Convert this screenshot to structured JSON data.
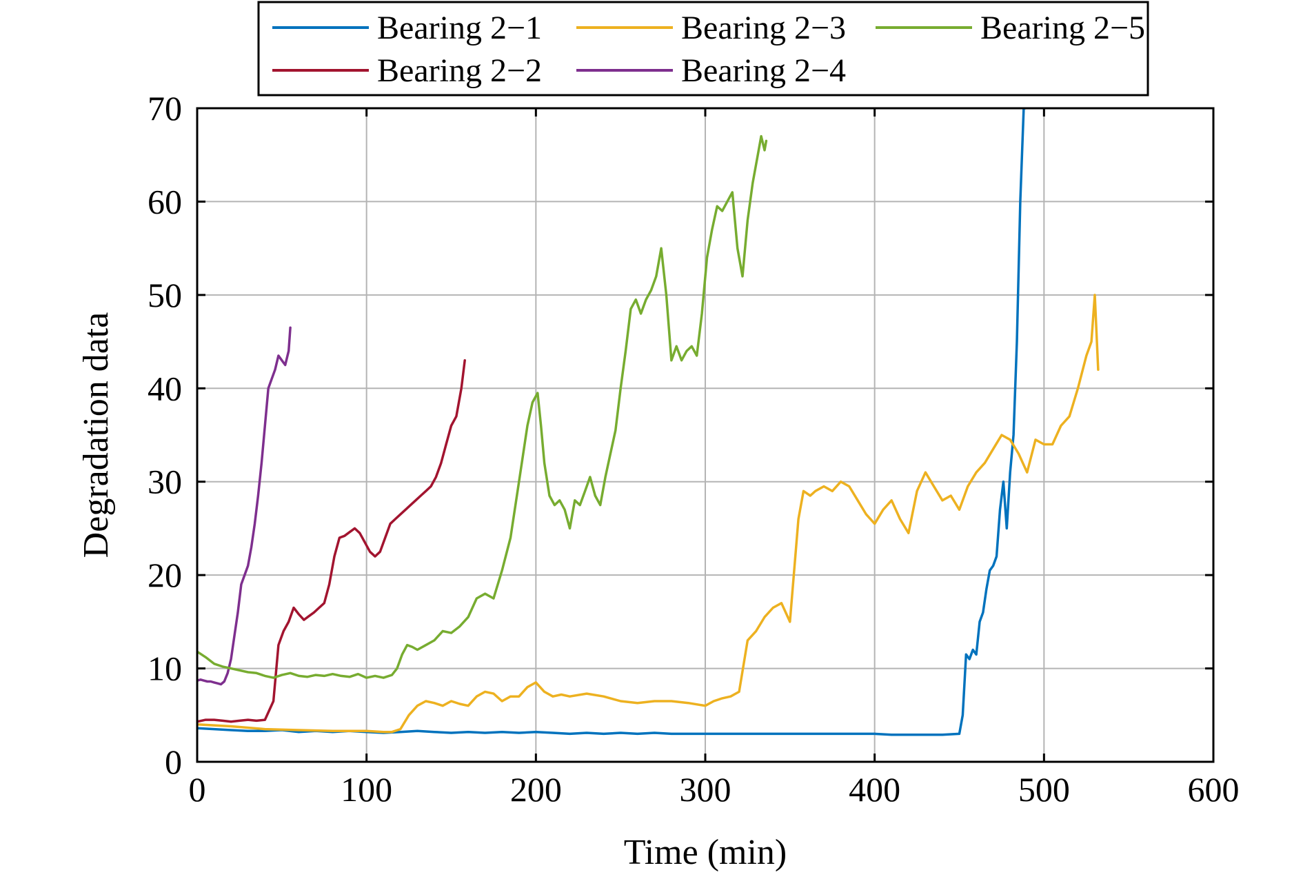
{
  "chart_data": {
    "type": "line",
    "title": "",
    "xlabel": "Time (min)",
    "ylabel": "Degradation data",
    "xlim": [
      0,
      600
    ],
    "ylim": [
      0,
      70
    ],
    "xticks": [
      0,
      100,
      200,
      300,
      400,
      500,
      600
    ],
    "yticks": [
      0,
      10,
      20,
      30,
      40,
      50,
      60,
      70
    ],
    "grid": true,
    "legend_position": "top-center-outside",
    "legend_layout": [
      [
        "Bearing 2−1",
        "Bearing 2−3",
        "Bearing 2−5"
      ],
      [
        "Bearing 2−2",
        "Bearing 2−4"
      ]
    ],
    "series": [
      {
        "name": "Bearing 2−1",
        "color": "#0072BD",
        "x": [
          0,
          10,
          20,
          30,
          40,
          50,
          60,
          70,
          80,
          90,
          100,
          110,
          120,
          130,
          140,
          150,
          160,
          170,
          180,
          190,
          200,
          210,
          220,
          230,
          240,
          250,
          260,
          270,
          280,
          290,
          300,
          310,
          320,
          330,
          340,
          350,
          360,
          370,
          380,
          390,
          400,
          410,
          420,
          430,
          440,
          450,
          452,
          454,
          456,
          458,
          460,
          462,
          464,
          466,
          468,
          470,
          472,
          474,
          476,
          478,
          480,
          482,
          484,
          486,
          488,
          489
        ],
        "y": [
          3.6,
          3.5,
          3.4,
          3.3,
          3.3,
          3.4,
          3.2,
          3.3,
          3.2,
          3.3,
          3.2,
          3.1,
          3.2,
          3.3,
          3.2,
          3.1,
          3.2,
          3.1,
          3.2,
          3.1,
          3.2,
          3.1,
          3.0,
          3.1,
          3.0,
          3.1,
          3.0,
          3.1,
          3.0,
          3.0,
          3.0,
          3.0,
          3.0,
          3.0,
          3.0,
          3.0,
          3.0,
          3.0,
          3.0,
          3.0,
          3.0,
          2.9,
          2.9,
          2.9,
          2.9,
          3.0,
          5.0,
          11.5,
          11.0,
          12.0,
          11.5,
          15.0,
          16.0,
          18.5,
          20.5,
          21.0,
          22.0,
          27.0,
          30.0,
          25.0,
          31.0,
          35.0,
          45.0,
          60.0,
          70.0,
          70.0
        ]
      },
      {
        "name": "Bearing 2−2",
        "color": "#A2142F",
        "x": [
          0,
          5,
          10,
          15,
          20,
          25,
          30,
          35,
          40,
          45,
          48,
          51,
          54,
          57,
          60,
          63,
          66,
          69,
          72,
          75,
          78,
          81,
          84,
          87,
          90,
          93,
          96,
          99,
          102,
          105,
          108,
          111,
          114,
          117,
          120,
          123,
          126,
          129,
          132,
          135,
          138,
          141,
          144,
          147,
          150,
          153,
          156,
          158
        ],
        "y": [
          4.3,
          4.5,
          4.5,
          4.4,
          4.3,
          4.4,
          4.5,
          4.4,
          4.5,
          6.5,
          12.5,
          14.0,
          15.0,
          16.5,
          15.8,
          15.2,
          15.6,
          16.0,
          16.5,
          17.0,
          19.0,
          22.0,
          24.0,
          24.2,
          24.6,
          25.0,
          24.5,
          23.5,
          22.5,
          22.0,
          22.5,
          24.0,
          25.5,
          26.0,
          26.5,
          27.0,
          27.5,
          28.0,
          28.5,
          29.0,
          29.5,
          30.5,
          32.0,
          34.0,
          36.0,
          37.0,
          40.0,
          43.0
        ]
      },
      {
        "name": "Bearing 2−3",
        "color": "#EDB120",
        "x": [
          0,
          20,
          40,
          60,
          80,
          100,
          110,
          115,
          120,
          125,
          130,
          135,
          140,
          145,
          150,
          155,
          160,
          165,
          170,
          175,
          180,
          185,
          190,
          195,
          200,
          205,
          210,
          215,
          220,
          230,
          240,
          250,
          260,
          270,
          280,
          290,
          300,
          305,
          310,
          315,
          320,
          325,
          330,
          335,
          340,
          345,
          350,
          355,
          358,
          362,
          365,
          370,
          375,
          380,
          385,
          390,
          395,
          400,
          405,
          410,
          415,
          420,
          425,
          430,
          435,
          440,
          445,
          450,
          455,
          460,
          465,
          470,
          475,
          480,
          485,
          490,
          495,
          500,
          505,
          510,
          515,
          520,
          525,
          528,
          530,
          532
        ],
        "y": [
          4.0,
          3.8,
          3.5,
          3.4,
          3.3,
          3.3,
          3.2,
          3.2,
          3.5,
          5.0,
          6.0,
          6.5,
          6.3,
          6.0,
          6.5,
          6.2,
          6.0,
          7.0,
          7.5,
          7.3,
          6.5,
          7.0,
          7.0,
          8.0,
          8.5,
          7.5,
          7.0,
          7.2,
          7.0,
          7.3,
          7.0,
          6.5,
          6.3,
          6.5,
          6.5,
          6.3,
          6.0,
          6.5,
          6.8,
          7.0,
          7.5,
          13.0,
          14.0,
          15.5,
          16.5,
          17.0,
          15.0,
          26.0,
          29.0,
          28.5,
          29.0,
          29.5,
          29.0,
          30.0,
          29.5,
          28.0,
          26.5,
          25.5,
          27.0,
          28.0,
          26.0,
          24.5,
          29.0,
          31.0,
          29.5,
          28.0,
          28.5,
          27.0,
          29.5,
          31.0,
          32.0,
          33.5,
          35.0,
          34.5,
          33.0,
          31.0,
          34.5,
          34.0,
          34.0,
          36.0,
          37.0,
          40.0,
          43.5,
          45.0,
          50.0,
          42.0
        ]
      },
      {
        "name": "Bearing 2−4",
        "color": "#7E2F8E",
        "x": [
          0,
          2,
          4,
          6,
          8,
          10,
          12,
          14,
          16,
          18,
          20,
          22,
          24,
          26,
          28,
          30,
          32,
          34,
          36,
          38,
          40,
          42,
          44,
          46,
          48,
          50,
          52,
          54,
          55
        ],
        "y": [
          8.7,
          8.8,
          8.7,
          8.6,
          8.6,
          8.5,
          8.4,
          8.3,
          8.6,
          9.5,
          11.0,
          13.5,
          16.0,
          19.0,
          20.0,
          21.0,
          23.0,
          25.5,
          28.5,
          32.0,
          36.0,
          40.0,
          41.0,
          42.0,
          43.5,
          43.0,
          42.5,
          44.0,
          46.5
        ]
      },
      {
        "name": "Bearing 2−5",
        "color": "#77AC30",
        "x": [
          0,
          5,
          10,
          15,
          20,
          25,
          30,
          35,
          40,
          45,
          50,
          55,
          60,
          65,
          70,
          75,
          80,
          85,
          90,
          95,
          100,
          105,
          110,
          115,
          118,
          121,
          124,
          127,
          130,
          135,
          140,
          145,
          150,
          155,
          160,
          165,
          170,
          175,
          180,
          185,
          190,
          195,
          198,
          201,
          203,
          205,
          208,
          211,
          214,
          217,
          220,
          223,
          226,
          229,
          232,
          235,
          238,
          241,
          244,
          247,
          250,
          253,
          256,
          259,
          262,
          265,
          268,
          271,
          274,
          277,
          280,
          283,
          286,
          289,
          292,
          295,
          298,
          301,
          304,
          307,
          310,
          313,
          316,
          319,
          322,
          325,
          328,
          331,
          333,
          335,
          336
        ],
        "y": [
          11.8,
          11.2,
          10.5,
          10.2,
          10.0,
          9.8,
          9.6,
          9.5,
          9.2,
          9.0,
          9.3,
          9.5,
          9.2,
          9.1,
          9.3,
          9.2,
          9.4,
          9.2,
          9.1,
          9.4,
          9.0,
          9.2,
          9.0,
          9.3,
          10.0,
          11.5,
          12.5,
          12.3,
          12.0,
          12.5,
          13.0,
          14.0,
          13.8,
          14.5,
          15.5,
          17.5,
          18.0,
          17.5,
          20.5,
          24.0,
          30.0,
          36.0,
          38.5,
          39.5,
          36.0,
          32.0,
          28.5,
          27.5,
          28.0,
          27.0,
          25.0,
          28.0,
          27.5,
          29.0,
          30.5,
          28.5,
          27.5,
          30.5,
          33.0,
          35.5,
          40.0,
          44.0,
          48.5,
          49.5,
          48.0,
          49.5,
          50.5,
          52.0,
          55.0,
          50.0,
          43.0,
          44.5,
          43.0,
          44.0,
          44.5,
          43.5,
          48.0,
          54.0,
          57.0,
          59.5,
          59.0,
          60.0,
          61.0,
          55.0,
          52.0,
          58.0,
          62.0,
          65.0,
          67.0,
          65.5,
          66.5
        ]
      }
    ]
  }
}
